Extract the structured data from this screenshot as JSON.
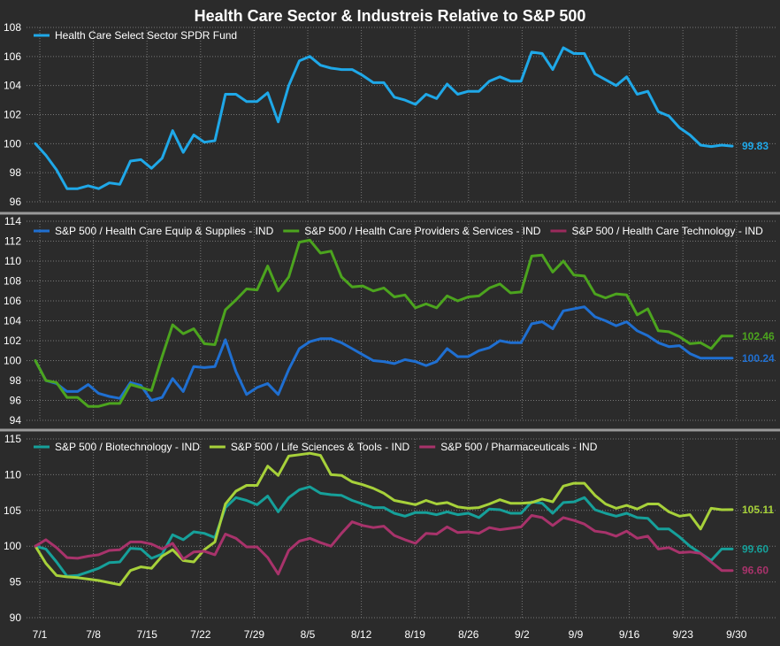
{
  "title": "Health Care Sector & Industreis Relative to S&P 500",
  "colors": {
    "background": "#2b2b2b",
    "grid": "#777777",
    "separator": "#9a9a9a",
    "text": "#ffffff"
  },
  "chart_data": [
    {
      "type": "line",
      "panel": "top",
      "ylim": [
        96,
        108
      ],
      "yticks": [
        96,
        98,
        100,
        102,
        104,
        106,
        108
      ],
      "grid": true,
      "legend": "top-left",
      "series": [
        {
          "name": "Health Care Select Sector SPDR Fund",
          "color": "#1fa8e8",
          "end_label": "99.83",
          "values": [
            100.0,
            99.2,
            98.2,
            96.9,
            96.9,
            97.1,
            96.9,
            97.3,
            97.2,
            98.8,
            98.9,
            98.3,
            99.0,
            100.9,
            99.4,
            100.6,
            100.1,
            100.2,
            103.4,
            103.4,
            102.9,
            102.9,
            103.5,
            101.5,
            104.0,
            105.7,
            106.0,
            105.4,
            105.2,
            105.1,
            105.1,
            104.7,
            104.2,
            104.2,
            103.2,
            103.0,
            102.7,
            103.4,
            103.1,
            104.1,
            103.4,
            103.6,
            103.6,
            104.3,
            104.6,
            104.3,
            104.3,
            106.3,
            106.2,
            105.1,
            106.6,
            106.2,
            106.2,
            104.8,
            104.4,
            104.0,
            104.6,
            103.4,
            103.6,
            102.2,
            101.9,
            101.1,
            100.6,
            99.9,
            99.8,
            99.9,
            99.83
          ]
        }
      ]
    },
    {
      "type": "line",
      "panel": "middle",
      "ylim": [
        94,
        114
      ],
      "yticks": [
        94,
        96,
        98,
        100,
        102,
        104,
        106,
        108,
        110,
        112,
        114
      ],
      "grid": true,
      "legend": "top-left",
      "series": [
        {
          "name": "S&P 500 / Health Care Equip & Supplies - IND",
          "color": "#1f6fd1",
          "end_label": "100.24",
          "values": [
            100.0,
            98.0,
            97.7,
            96.9,
            96.9,
            97.6,
            96.7,
            96.4,
            96.2,
            97.8,
            97.5,
            96.0,
            96.3,
            98.2,
            96.9,
            99.4,
            99.3,
            99.4,
            102.1,
            98.9,
            96.6,
            97.3,
            97.7,
            96.6,
            99.1,
            101.2,
            101.9,
            102.2,
            102.2,
            101.8,
            101.2,
            100.6,
            100.0,
            99.9,
            99.7,
            100.1,
            99.9,
            99.5,
            99.9,
            101.2,
            100.4,
            100.4,
            101.0,
            101.3,
            102.0,
            101.8,
            101.8,
            103.7,
            103.9,
            103.2,
            105.0,
            105.2,
            105.4,
            104.4,
            104.0,
            103.5,
            103.9,
            103.0,
            102.5,
            101.8,
            101.4,
            101.5,
            100.7,
            100.24,
            100.24,
            100.24,
            100.24
          ]
        },
        {
          "name": "S&P 500 / Health Care Providers & Services - IND",
          "color": "#4ca41e",
          "end_label": "102.46",
          "values": [
            100.0,
            98.0,
            97.8,
            96.3,
            96.3,
            95.4,
            95.4,
            95.7,
            95.7,
            97.6,
            97.3,
            97.0,
            100.4,
            103.6,
            102.7,
            103.2,
            101.7,
            101.6,
            105.1,
            106.1,
            107.2,
            107.1,
            109.5,
            107.0,
            108.4,
            111.9,
            112.1,
            110.8,
            111.0,
            108.4,
            107.4,
            107.5,
            107.0,
            107.3,
            106.4,
            106.6,
            105.3,
            105.7,
            105.3,
            106.5,
            106.0,
            106.4,
            106.5,
            107.3,
            107.7,
            106.8,
            106.9,
            110.5,
            110.6,
            108.9,
            110.0,
            108.6,
            108.5,
            106.7,
            106.3,
            106.7,
            106.6,
            104.6,
            105.2,
            103.0,
            102.9,
            102.4,
            101.7,
            101.8,
            101.2,
            102.46,
            102.46
          ]
        },
        {
          "name": "S&P 500 / Health Care Technology - IND",
          "color": "#9b2a5c",
          "end_label": "",
          "values": []
        }
      ]
    },
    {
      "type": "line",
      "panel": "bottom",
      "ylim": [
        90,
        115
      ],
      "yticks": [
        90,
        95,
        100,
        105,
        110,
        115
      ],
      "grid": true,
      "legend": "top-left",
      "x_labels": [
        "7/1",
        "7/8",
        "7/15",
        "7/22",
        "7/29",
        "8/5",
        "8/12",
        "8/19",
        "8/26",
        "9/2",
        "9/9",
        "9/16",
        "9/23",
        "9/30"
      ],
      "series": [
        {
          "name": "S&P 500 / Biotechnology - IND",
          "color": "#16a09a",
          "end_label": "99.60",
          "values": [
            100.0,
            99.6,
            97.8,
            95.8,
            95.9,
            96.4,
            96.9,
            97.7,
            97.8,
            99.7,
            99.6,
            98.3,
            98.9,
            101.6,
            100.9,
            102.0,
            101.8,
            101.2,
            105.4,
            106.8,
            106.4,
            105.8,
            107.0,
            104.8,
            106.8,
            107.9,
            108.3,
            107.4,
            107.2,
            107.1,
            106.4,
            105.9,
            105.4,
            105.4,
            104.6,
            104.2,
            104.7,
            104.7,
            104.4,
            104.8,
            104.4,
            104.6,
            104.0,
            105.2,
            105.1,
            104.6,
            104.6,
            106.2,
            106.0,
            104.6,
            106.1,
            106.2,
            106.8,
            105.1,
            104.6,
            104.2,
            104.6,
            104.0,
            103.9,
            102.4,
            102.4,
            101.3,
            100.0,
            99.0,
            98.0,
            99.6,
            99.6
          ]
        },
        {
          "name": "S&P 500 / Life Sciences & Tools - IND",
          "color": "#a7d13a",
          "end_label": "105.11",
          "values": [
            100.0,
            97.6,
            95.9,
            95.7,
            95.6,
            95.4,
            95.2,
            94.9,
            94.6,
            96.6,
            97.1,
            96.9,
            98.6,
            99.5,
            98.0,
            97.8,
            99.5,
            100.6,
            105.9,
            107.7,
            108.5,
            108.5,
            111.2,
            109.9,
            112.6,
            112.8,
            113.0,
            112.7,
            110.0,
            109.9,
            109.0,
            108.6,
            108.1,
            107.4,
            106.4,
            106.1,
            105.8,
            106.4,
            105.9,
            106.1,
            105.5,
            105.3,
            105.4,
            105.9,
            106.5,
            106.0,
            106.0,
            106.1,
            106.6,
            106.2,
            108.4,
            108.8,
            108.8,
            107.1,
            105.9,
            105.3,
            105.7,
            105.2,
            105.9,
            105.9,
            104.8,
            104.2,
            104.4,
            102.4,
            105.3,
            105.1,
            105.11
          ]
        },
        {
          "name": "S&P 500 / Pharmaceuticals - IND",
          "color": "#a8336b",
          "end_label": "96.60",
          "values": [
            100.0,
            100.9,
            99.8,
            98.4,
            98.3,
            98.6,
            98.8,
            99.4,
            99.5,
            100.6,
            100.6,
            100.3,
            99.6,
            100.4,
            98.2,
            99.2,
            99.3,
            98.8,
            101.7,
            101.1,
            99.9,
            99.9,
            98.4,
            96.1,
            99.4,
            100.7,
            101.1,
            100.5,
            100.0,
            101.8,
            103.4,
            102.9,
            102.6,
            102.8,
            101.5,
            100.9,
            100.4,
            101.8,
            101.7,
            102.7,
            101.9,
            102.0,
            101.8,
            102.6,
            102.3,
            102.5,
            102.7,
            104.3,
            104.0,
            102.9,
            104.0,
            103.6,
            103.1,
            102.1,
            101.9,
            101.4,
            102.1,
            101.1,
            101.4,
            99.6,
            99.8,
            99.1,
            99.2,
            99.0,
            97.8,
            96.6,
            96.6
          ]
        }
      ]
    }
  ]
}
